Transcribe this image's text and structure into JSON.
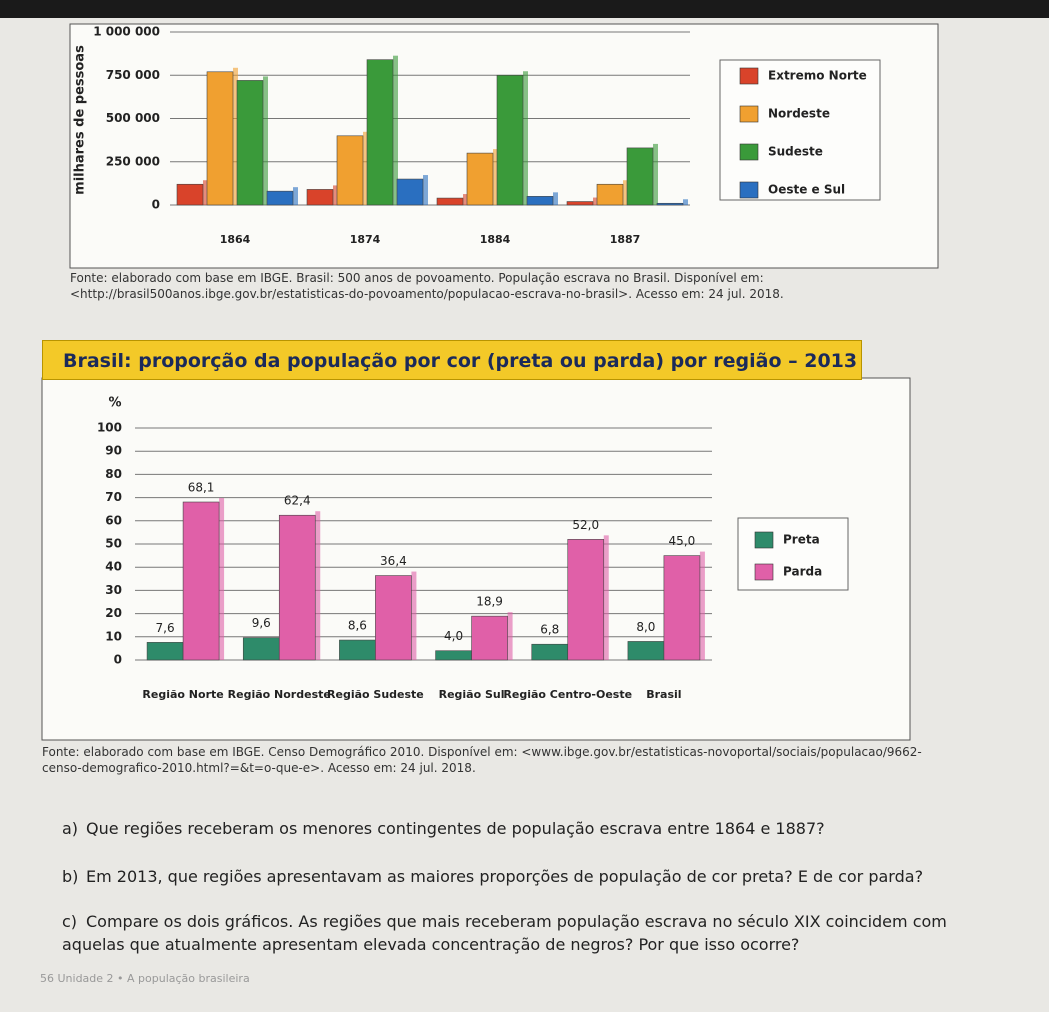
{
  "chart_data": [
    {
      "type": "bar",
      "ylabel": "milhares de pessoas",
      "categories": [
        "1864",
        "1874",
        "1884",
        "1887"
      ],
      "series": [
        {
          "name": "Extremo Norte",
          "color": "#d9432a",
          "values": [
            120000,
            90000,
            40000,
            20000
          ]
        },
        {
          "name": "Nordeste",
          "color": "#f0a030",
          "values": [
            770000,
            400000,
            300000,
            120000
          ]
        },
        {
          "name": "Sudeste",
          "color": "#3a9a3a",
          "values": [
            720000,
            840000,
            750000,
            330000
          ]
        },
        {
          "name": "Oeste e Sul",
          "color": "#2a6fc0",
          "values": [
            80000,
            150000,
            50000,
            10000
          ]
        }
      ],
      "ylim": [
        0,
        1000000
      ],
      "yticks": [
        0,
        {
          "value": 250000,
          "label": "250 000"
        },
        {
          "value": 500000,
          "label": "500 000"
        },
        {
          "value": 750000,
          "label": "750 000"
        },
        {
          "value": 1000000,
          "label": "1 000 000"
        }
      ],
      "grid": true,
      "legend": "right"
    },
    {
      "type": "bar",
      "title": "Brasil: proporção da população por cor (preta ou parda) por região – 2013",
      "ylabel": "%",
      "categories": [
        "Região Norte",
        "Região Nordeste",
        "Região Sudeste",
        "Região Sul",
        "Região Centro-Oeste",
        "Brasil"
      ],
      "series": [
        {
          "name": "Preta",
          "color": "#2e8b6a",
          "values": [
            7.6,
            9.6,
            8.6,
            4.0,
            6.8,
            8.0
          ],
          "value_labels": [
            "7,6",
            "9,6",
            "8,6",
            "4,0",
            "6,8",
            "8,0"
          ]
        },
        {
          "name": "Parda",
          "color": "#e060a8",
          "values": [
            68.1,
            62.4,
            36.4,
            18.9,
            52.0,
            45.0
          ],
          "value_labels": [
            "68,1",
            "62,4",
            "36,4",
            "18,9",
            "52,0",
            "45,0"
          ]
        }
      ],
      "ylim": [
        0,
        100
      ],
      "yticks": [
        0,
        10,
        20,
        30,
        40,
        50,
        60,
        70,
        80,
        90,
        100
      ],
      "grid": true,
      "legend": "right"
    }
  ],
  "sources": [
    "Fonte: elaborado com base em IBGE. Brasil: 500 anos de povoamento. População escrava no Brasil. Disponível em: <http://brasil500anos.ibge.gov.br/estatisticas-do-povoamento/populacao-escrava-no-brasil>. Acesso em: 24 jul. 2018.",
    "Fonte: elaborado com base em IBGE. Censo Demográfico 2010. Disponível em: <www.ibge.gov.br/estatisticas-novoportal/sociais/populacao/9662-censo-demografico-2010.html?=&t=o-que-e>. Acesso em: 24 jul. 2018."
  ],
  "questions": [
    {
      "key": "a)",
      "text": "Que regiões receberam os menores contingentes de população escrava entre 1864 e 1887?"
    },
    {
      "key": "b)",
      "text": "Em 2013, que regiões apresentavam as maiores proporções de população de cor preta? E de cor parda?"
    },
    {
      "key": "c)",
      "text": "Compare os dois gráficos. As regiões que mais receberam população escrava no século XIX coincidem com aquelas que atualmente apresentam elevada concentração de negros? Por que isso ocorre?"
    }
  ],
  "footer": "56 Unidade 2 • A população brasileira"
}
